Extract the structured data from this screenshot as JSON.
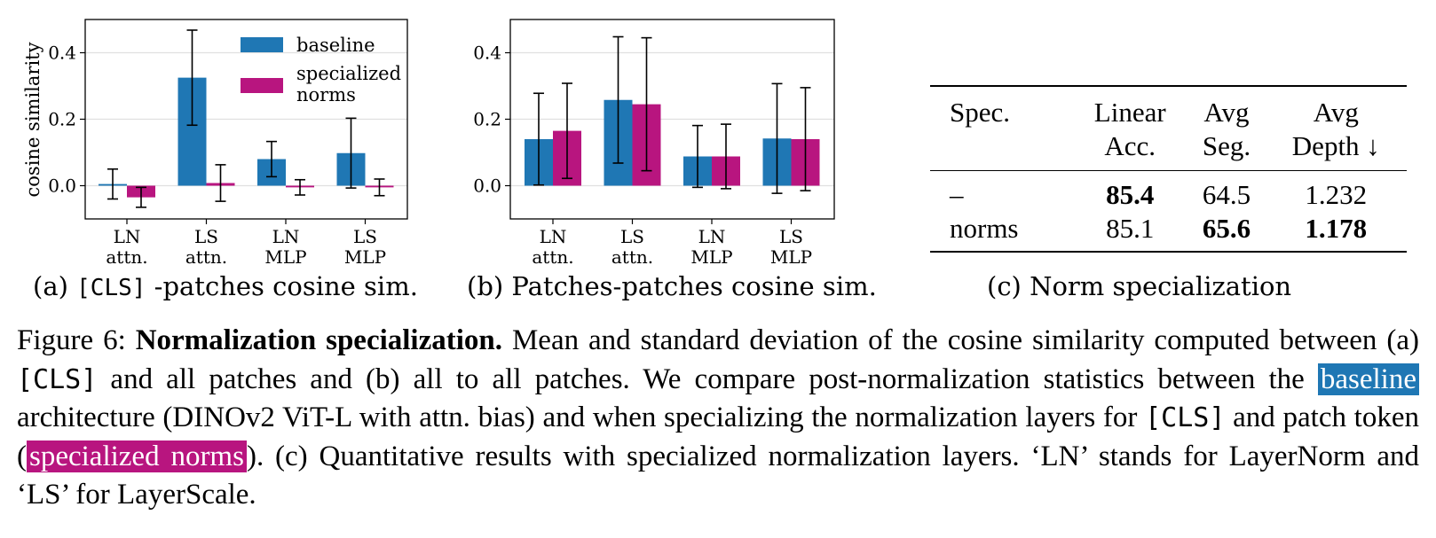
{
  "colors": {
    "baseline": "#1f77b4",
    "specialized": "#b8157f",
    "grid": "#e0e0e0"
  },
  "legend": {
    "baseline": "baseline",
    "specialized_line1": "specialized",
    "specialized_line2": "norms"
  },
  "ylabel": "cosine similarity",
  "ticks": [
    "0.0",
    "0.2",
    "0.4"
  ],
  "chart_data": [
    {
      "type": "bar",
      "title": "(a) [CLS] -patches cosine sim.",
      "ylabel": "cosine similarity",
      "ylim": [
        -0.1,
        0.5
      ],
      "categories": [
        [
          "LN",
          "attn."
        ],
        [
          "LS",
          "attn."
        ],
        [
          "LN",
          "MLP"
        ],
        [
          "LS",
          "MLP"
        ]
      ],
      "series": [
        {
          "name": "baseline",
          "values": [
            0.005,
            0.325,
            0.08,
            0.098
          ],
          "err": [
            0.045,
            0.143,
            0.053,
            0.105
          ]
        },
        {
          "name": "specialized norms",
          "values": [
            -0.035,
            0.008,
            -0.005,
            -0.005
          ],
          "err": [
            0.03,
            0.055,
            0.023,
            0.025
          ]
        }
      ]
    },
    {
      "type": "bar",
      "title": "(b) Patches-patches cosine sim.",
      "ylabel": "",
      "ylim": [
        -0.1,
        0.5
      ],
      "categories": [
        [
          "LN",
          "attn."
        ],
        [
          "LS",
          "attn."
        ],
        [
          "LN",
          "MLP"
        ],
        [
          "LS",
          "MLP"
        ]
      ],
      "series": [
        {
          "name": "baseline",
          "values": [
            0.14,
            0.258,
            0.088,
            0.142
          ],
          "err": [
            0.138,
            0.19,
            0.093,
            0.165
          ]
        },
        {
          "name": "specialized norms",
          "values": [
            0.165,
            0.245,
            0.088,
            0.14
          ],
          "err": [
            0.143,
            0.2,
            0.097,
            0.155
          ]
        }
      ]
    },
    {
      "type": "table",
      "title": "(c) Norm specialization",
      "headers": [
        [
          "Spec."
        ],
        [
          "Linear",
          "Acc."
        ],
        [
          "Avg",
          "Seg."
        ],
        [
          "Avg",
          "Depth ↓"
        ]
      ],
      "rows": [
        [
          "–",
          "85.4",
          "64.5",
          "1.232"
        ],
        [
          "norms",
          "85.1",
          "65.6",
          "1.178"
        ]
      ],
      "bold": [
        [
          false,
          true,
          false,
          false
        ],
        [
          false,
          false,
          true,
          true
        ]
      ]
    }
  ],
  "panels": {
    "a": {
      "pre": "(a) ",
      "cls": "[CLS]",
      "post": " -patches cosine sim."
    },
    "b": {
      "text": "(b) Patches-patches cosine sim."
    },
    "c": {
      "text": "(c) Norm specialization"
    }
  },
  "caption": {
    "figure_label": "Figure 6: ",
    "bold_title": "Normalization specialization.",
    "t1": " Mean and standard deviation of the cosine similarity computed between (a) ",
    "cls1": "[CLS]",
    "t2": " and all patches and (b) all to all patches. We compare post-normalization statistics between the ",
    "hl_baseline": "baseline",
    "t3": " architecture (DINOv2 ViT-L with attn. bias) and when specializing the normalization layers for ",
    "cls2": "[CLS]",
    "t4": " and patch token (",
    "hl_specialized": "specialized norms",
    "t5": "). (c) Quantitative results with specialized normalization layers. ‘LN’ stands for LayerNorm and ‘LS’ for LayerScale."
  }
}
